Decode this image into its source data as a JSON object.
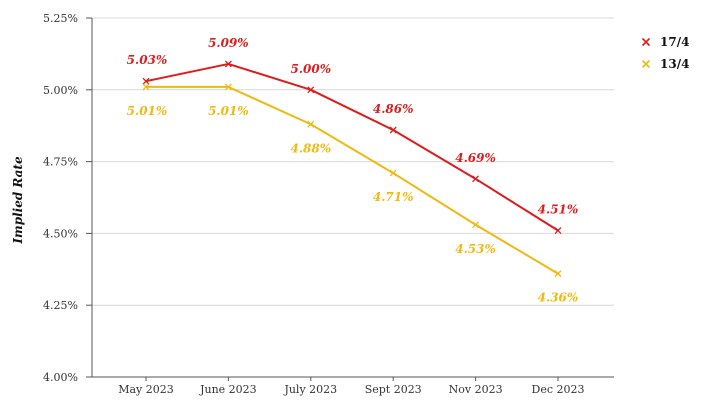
{
  "chart_data": {
    "type": "line",
    "categories": [
      "May 2023",
      "June 2023",
      "July 2023",
      "Sept 2023",
      "Nov 2023",
      "Dec 2023"
    ],
    "series": [
      {
        "name": "17/4",
        "color": "#e01b1b",
        "values": [
          5.03,
          5.09,
          5.0,
          4.86,
          4.69,
          4.51
        ],
        "labels": [
          "5.03%",
          "5.09%",
          "5.00%",
          "4.86%",
          "4.69%",
          "4.51%"
        ],
        "label_position": "above"
      },
      {
        "name": "13/4",
        "color": "#f0b90f",
        "values": [
          5.01,
          5.01,
          4.88,
          4.71,
          4.53,
          4.36
        ],
        "labels": [
          "5.01%",
          "5.01%",
          "4.88%",
          "4.71%",
          "4.53%",
          "4.36%"
        ],
        "label_position": "below"
      }
    ],
    "title": "",
    "xlabel": "",
    "ylabel": "Implied Rate",
    "ylim": [
      4.0,
      5.25
    ],
    "yticks": [
      4.0,
      4.25,
      4.5,
      4.75,
      5.0,
      5.25
    ],
    "ytick_labels": [
      "4.00%",
      "4.25%",
      "4.50%",
      "4.75%",
      "5.00%",
      "5.25%"
    ],
    "grid": true,
    "legend": "top-right",
    "marker": "x"
  }
}
